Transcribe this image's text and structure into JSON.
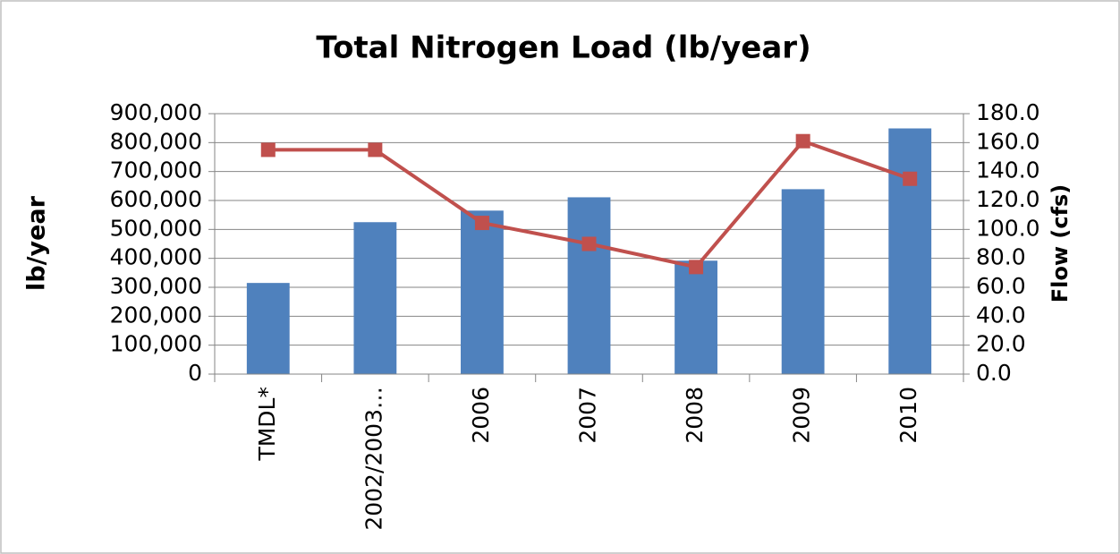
{
  "chart_data": {
    "type": "bar",
    "title": "Total Nitrogen Load (lb/year)",
    "y_label": "lb/year",
    "y2_label": "Flow (cfs)",
    "categories": [
      "TMDL*",
      "2002/2003…",
      "2006",
      "2007",
      "2008",
      "2009",
      "2010"
    ],
    "series": [
      {
        "type": "bar",
        "color": "#4f81bd",
        "values": [
          315000,
          525000,
          565000,
          611000,
          392000,
          639000,
          849000
        ]
      },
      {
        "type": "line",
        "axis": "y2",
        "color": "#c0504d",
        "values": [
          155,
          155,
          104.5,
          90,
          74,
          161,
          135
        ]
      }
    ],
    "ylim": [
      0,
      900000
    ],
    "yticks": [
      0,
      {
        "value": 100000,
        "label": "100,000"
      },
      {
        "value": 200000,
        "label": "200,000"
      },
      {
        "value": 300000,
        "label": "300,000"
      },
      {
        "value": 400000,
        "label": "400,000"
      },
      {
        "value": 500000,
        "label": "500,000"
      },
      {
        "value": 600000,
        "label": "600,000"
      },
      {
        "value": 700000,
        "label": "700,000"
      },
      {
        "value": 800000,
        "label": "800,000"
      },
      {
        "value": 900000,
        "label": "900,000"
      }
    ],
    "y2lim": [
      0,
      180
    ],
    "y2ticks": [
      {
        "value": 0,
        "label": "0.0"
      },
      {
        "value": 20,
        "label": "20.0"
      },
      {
        "value": 40,
        "label": "40.0"
      },
      {
        "value": 60,
        "label": "60.0"
      },
      {
        "value": 80,
        "label": "80.0"
      },
      {
        "value": 100,
        "label": "100.0"
      },
      {
        "value": 120,
        "label": "120.0"
      },
      {
        "value": 140,
        "label": "140.0"
      },
      {
        "value": 160,
        "label": "160.0"
      },
      {
        "value": 180,
        "label": "180.0"
      }
    ],
    "grid": true
  }
}
